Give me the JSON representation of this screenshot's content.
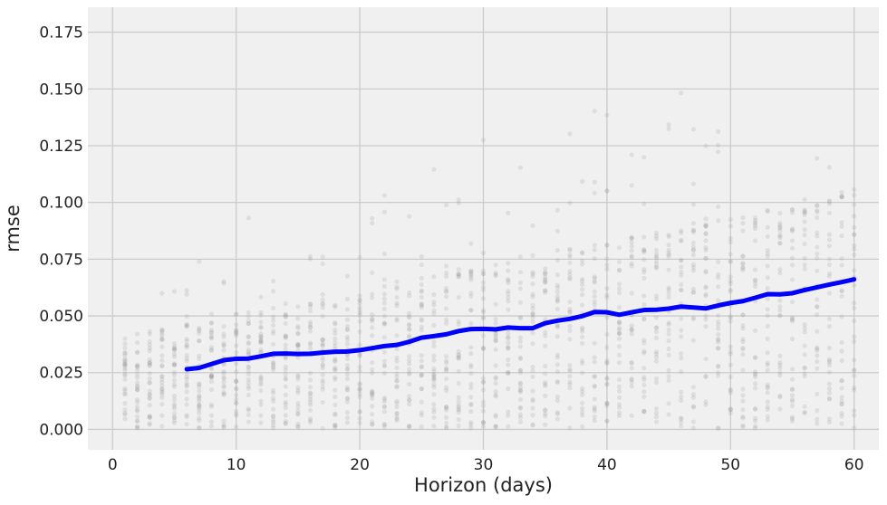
{
  "chart_data": {
    "type": "scatter",
    "title": "",
    "xlabel": "Horizon (days)",
    "ylabel": "rmse",
    "xlim": [
      -2,
      62
    ],
    "ylim": [
      -0.009,
      0.186
    ],
    "xticks": [
      0,
      10,
      20,
      30,
      40,
      50,
      60
    ],
    "yticks": [
      0.0,
      0.025,
      0.05,
      0.075,
      0.1,
      0.125,
      0.15,
      0.175
    ],
    "xtick_labels": [
      "0",
      "10",
      "20",
      "30",
      "40",
      "50",
      "60"
    ],
    "ytick_labels": [
      "0.000",
      "0.025",
      "0.050",
      "0.075",
      "0.100",
      "0.125",
      "0.150",
      "0.175"
    ],
    "grid": true,
    "colors": {
      "background": "#f0f0f0",
      "grid": "#cbcbcb",
      "scatter": "#9e9e9e",
      "line": "#0000ff"
    },
    "series": [
      {
        "kind": "line",
        "x": [
          6,
          7,
          8,
          9,
          10,
          11,
          12,
          13,
          14,
          15,
          16,
          17,
          18,
          19,
          20,
          21,
          22,
          23,
          24,
          25,
          26,
          27,
          28,
          29,
          30,
          31,
          32,
          33,
          34,
          35,
          36,
          37,
          38,
          39,
          40,
          41,
          42,
          43,
          44,
          45,
          46,
          47,
          48,
          49,
          50,
          51,
          52,
          53,
          54,
          55,
          56,
          57,
          58,
          59,
          60
        ],
        "y": [
          0.0265,
          0.0271,
          0.0288,
          0.0305,
          0.0311,
          0.0312,
          0.0322,
          0.0333,
          0.0334,
          0.0332,
          0.0333,
          0.0338,
          0.0342,
          0.0343,
          0.0349,
          0.0358,
          0.0367,
          0.0372,
          0.0386,
          0.0404,
          0.0411,
          0.0419,
          0.0433,
          0.0442,
          0.0443,
          0.0441,
          0.0449,
          0.0446,
          0.0446,
          0.0468,
          0.0479,
          0.0487,
          0.0499,
          0.0517,
          0.0516,
          0.0505,
          0.0516,
          0.0526,
          0.0527,
          0.0532,
          0.0541,
          0.0537,
          0.0533,
          0.0546,
          0.0557,
          0.0565,
          0.058,
          0.0596,
          0.0595,
          0.06,
          0.0614,
          0.0626,
          0.0638,
          0.0649,
          0.0661
        ]
      }
    ]
  }
}
